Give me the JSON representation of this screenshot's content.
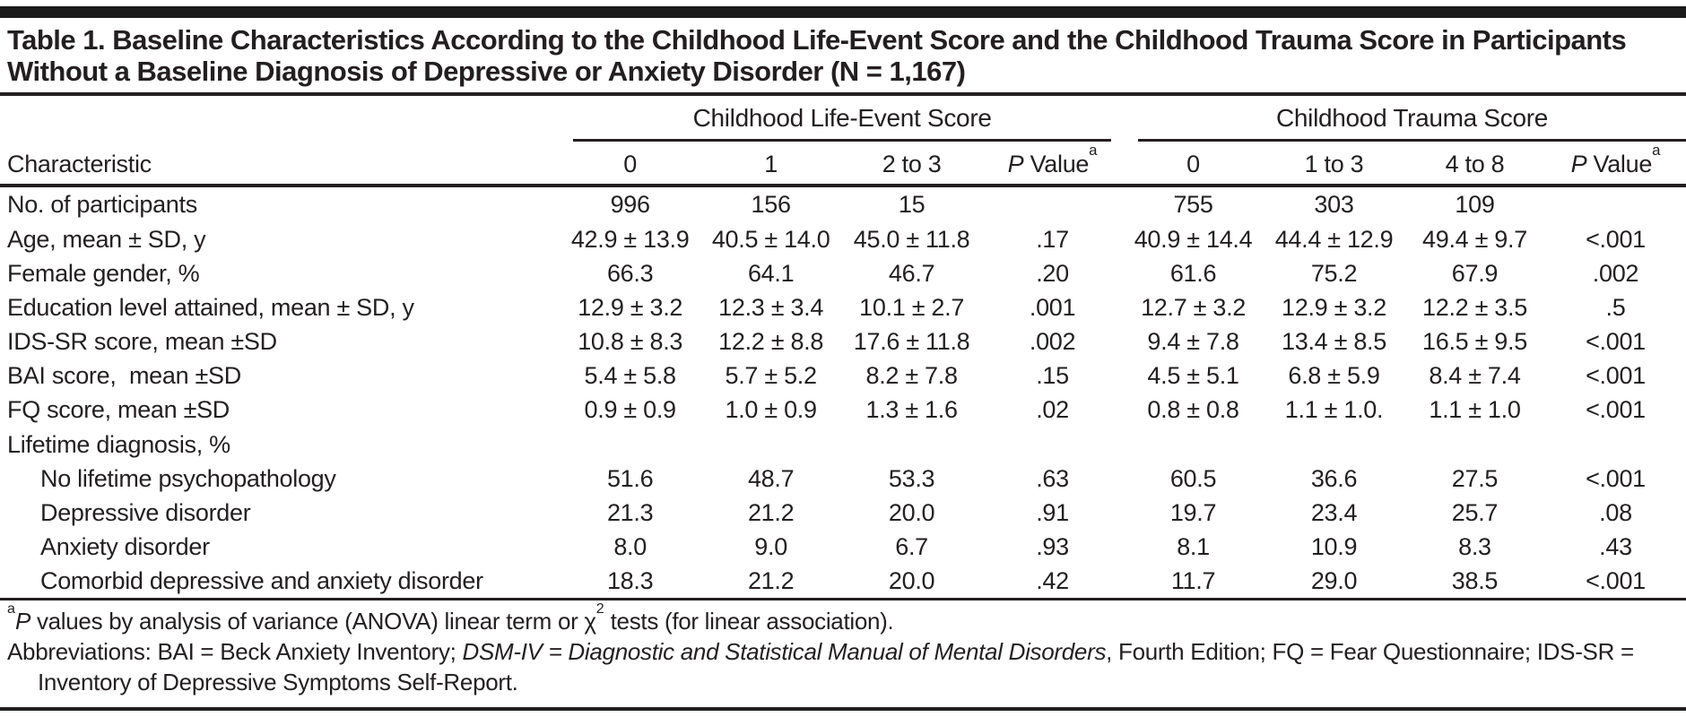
{
  "table": {
    "title": "Table 1. Baseline Characteristics According to the Childhood Life-Event Score and the Childhood Trauma Score in Participants Without a Baseline Diagnosis of Depressive or Anxiety Disorder (N = 1,167)",
    "char_header": "Characteristic",
    "groups": [
      {
        "label": "Childhood Life-Event Score",
        "columns": [
          {
            "label": "0"
          },
          {
            "label": "1"
          },
          {
            "label": "2 to 3"
          },
          {
            "label": "P Value",
            "sup": "a",
            "italic_first": true
          }
        ]
      },
      {
        "label": "Childhood Trauma Score",
        "columns": [
          {
            "label": "0"
          },
          {
            "label": "1 to 3"
          },
          {
            "label": "4 to 8"
          },
          {
            "label": "P Value",
            "sup": "a",
            "italic_first": true
          }
        ]
      }
    ],
    "rows": [
      {
        "label": "No. of participants",
        "indent": false,
        "section": false,
        "values": [
          "996",
          "156",
          "15",
          "",
          "755",
          "303",
          "109",
          ""
        ]
      },
      {
        "label": "Age, mean ± SD, y",
        "indent": false,
        "section": false,
        "values": [
          "42.9 ± 13.9",
          "40.5 ± 14.0",
          "45.0 ± 11.8",
          ".17",
          "40.9 ± 14.4",
          "44.4 ± 12.9",
          "49.4 ± 9.7",
          "<.001"
        ]
      },
      {
        "label": "Female gender, %",
        "indent": false,
        "section": false,
        "values": [
          "66.3",
          "64.1",
          "46.7",
          ".20",
          "61.6",
          "75.2",
          "67.9",
          ".002"
        ]
      },
      {
        "label": "Education level attained, mean ± SD, y",
        "indent": false,
        "section": false,
        "values": [
          "12.9 ± 3.2",
          "12.3 ± 3.4",
          "10.1 ± 2.7",
          ".001",
          "12.7 ± 3.2",
          "12.9 ± 3.2",
          "12.2 ± 3.5",
          ".5"
        ]
      },
      {
        "label": "IDS-SR score, mean ±SD",
        "indent": false,
        "section": false,
        "values": [
          "10.8 ± 8.3",
          "12.2 ± 8.8",
          "17.6 ± 11.8",
          ".002",
          "9.4 ± 7.8",
          "13.4 ± 8.5",
          "16.5 ± 9.5",
          "<.001"
        ]
      },
      {
        "label": "BAI score,  mean ±SD",
        "indent": false,
        "section": false,
        "values": [
          "5.4 ± 5.8",
          "5.7 ± 5.2",
          "8.2 ± 7.8",
          ".15",
          "4.5 ± 5.1",
          "6.8 ± 5.9",
          "8.4 ± 7.4",
          "<.001"
        ]
      },
      {
        "label": "FQ score, mean ±SD",
        "indent": false,
        "section": false,
        "values": [
          "0.9 ± 0.9",
          "1.0 ± 0.9",
          "1.3 ± 1.6",
          ".02",
          "0.8 ± 0.8",
          "1.1 ± 1.0.",
          "1.1 ± 1.0",
          "<.001"
        ]
      },
      {
        "label": "Lifetime diagnosis, %",
        "indent": false,
        "section": true,
        "values": [
          "",
          "",
          "",
          "",
          "",
          "",
          "",
          ""
        ]
      },
      {
        "label": "No lifetime psychopathology",
        "indent": true,
        "section": false,
        "values": [
          "51.6",
          "48.7",
          "53.3",
          ".63",
          "60.5",
          "36.6",
          "27.5",
          "<.001"
        ]
      },
      {
        "label": "Depressive disorder",
        "indent": true,
        "section": false,
        "values": [
          "21.3",
          "21.2",
          "20.0",
          ".91",
          "19.7",
          "23.4",
          "25.7",
          ".08"
        ]
      },
      {
        "label": "Anxiety disorder",
        "indent": true,
        "section": false,
        "values": [
          "8.0",
          "9.0",
          "6.7",
          ".93",
          "8.1",
          "10.9",
          "8.3",
          ".43"
        ]
      },
      {
        "label": "Comorbid depressive and anxiety disorder",
        "indent": true,
        "section": false,
        "values": [
          "18.3",
          "21.2",
          "20.0",
          ".42",
          "11.7",
          "29.0",
          "38.5",
          "<.001"
        ]
      }
    ],
    "footnotes": [
      {
        "hanging": false,
        "parts": [
          {
            "t": "sup",
            "v": "a"
          },
          {
            "t": "i",
            "v": "P"
          },
          {
            "t": "",
            "v": " values by analysis of variance (ANOVA) linear term or χ"
          },
          {
            "t": "sup",
            "v": "2"
          },
          {
            "t": "",
            "v": " tests (for linear association)."
          }
        ]
      },
      {
        "hanging": true,
        "parts": [
          {
            "t": "",
            "v": "Abbreviations: BAI = Beck Anxiety Inventory; "
          },
          {
            "t": "i",
            "v": "DSM-IV = Diagnostic and Statistical Manual of Mental Disorders"
          },
          {
            "t": "",
            "v": ", Fourth Edition; FQ = Fear Questionnaire; IDS-SR = Inventory of Depressive Symptoms Self-Report."
          }
        ]
      }
    ],
    "colors": {
      "text": "#231f20",
      "rule": "#231f20",
      "top_bar": "#1b1b1b",
      "background": "#ffffff"
    }
  }
}
